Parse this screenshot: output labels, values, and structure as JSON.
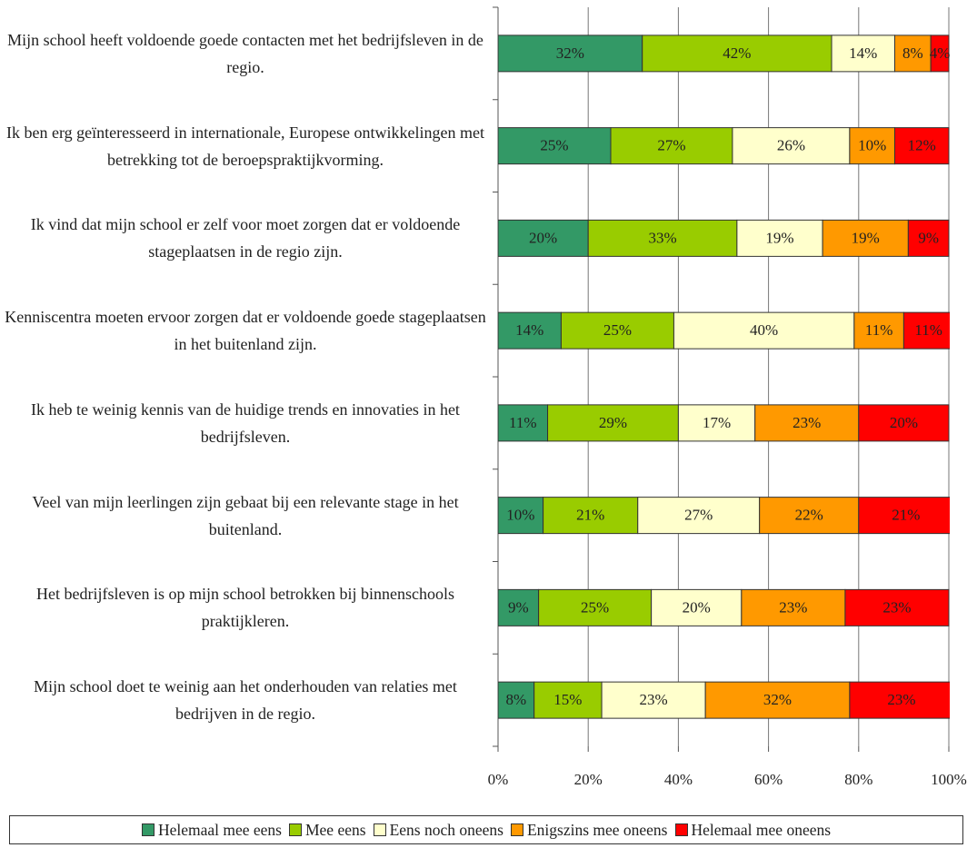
{
  "chart_data": {
    "type": "stacked_bar_horizontal",
    "categories": [
      "Mijn school heeft voldoende goede contacten met het bedrijfsleven in de regio.",
      "Ik ben erg geïnteresseerd in internationale, Europese ontwikkelingen met betrekking tot de beroepspraktijkvorming.",
      "Ik vind dat mijn school er zelf voor moet zorgen dat er voldoende stageplaatsen in de regio zijn.",
      "Kenniscentra moeten ervoor zorgen dat er voldoende goede stageplaatsen in het buitenland zijn.",
      "Ik heb te weinig kennis van de huidige trends en innovaties in het bedrijfsleven.",
      "Veel van mijn leerlingen zijn gebaat bij een relevante stage in het buitenland.",
      "Het bedrijfsleven is op mijn school betrokken bij binnenschools praktijkleren.",
      "Mijn school doet te weinig aan het onderhouden van relaties met bedrijven in de regio."
    ],
    "series": [
      {
        "name": "Helemaal mee eens",
        "color": "#339966",
        "values": [
          32,
          25,
          20,
          14,
          11,
          10,
          9,
          8
        ],
        "value_labels": [
          "32%",
          "25%",
          "20%",
          "14%",
          "11%",
          "10%",
          "9%",
          "8%"
        ]
      },
      {
        "name": "Mee eens",
        "color": "#99cc00",
        "values": [
          42,
          27,
          33,
          25,
          29,
          21,
          25,
          15
        ],
        "value_labels": [
          "42%",
          "27%",
          "33%",
          "25%",
          "29%",
          "21%",
          "25%",
          "15%"
        ]
      },
      {
        "name": "Eens noch oneens",
        "color": "#ffffcc",
        "values": [
          14,
          26,
          19,
          40,
          17,
          27,
          20,
          23
        ],
        "value_labels": [
          "14%",
          "26%",
          "19%",
          "40%",
          "17%",
          "27%",
          "20%",
          "23%"
        ]
      },
      {
        "name": "Enigszins mee oneens",
        "color": "#ff9900",
        "values": [
          8,
          10,
          19,
          11,
          23,
          22,
          23,
          32
        ],
        "value_labels": [
          "8%",
          "10%",
          "19%",
          "11%",
          "23%",
          "22%",
          "23%",
          "32%"
        ]
      },
      {
        "name": "Helemaal mee oneens",
        "color": "#ff0000",
        "values": [
          4,
          12,
          9,
          11,
          20,
          21,
          23,
          23
        ],
        "value_labels": [
          "4%",
          "12%",
          "9%",
          "11%",
          "20%",
          "21%",
          "23%",
          "23%"
        ]
      }
    ],
    "xlim": [
      0,
      100
    ],
    "xticks": [
      {
        "value": 0,
        "label": "0%"
      },
      {
        "value": 20,
        "label": "20%"
      },
      {
        "value": 40,
        "label": "40%"
      },
      {
        "value": 60,
        "label": "60%"
      },
      {
        "value": 80,
        "label": "80%"
      },
      {
        "value": 100,
        "label": "100%"
      }
    ],
    "grid": true,
    "legend": "bottom"
  }
}
